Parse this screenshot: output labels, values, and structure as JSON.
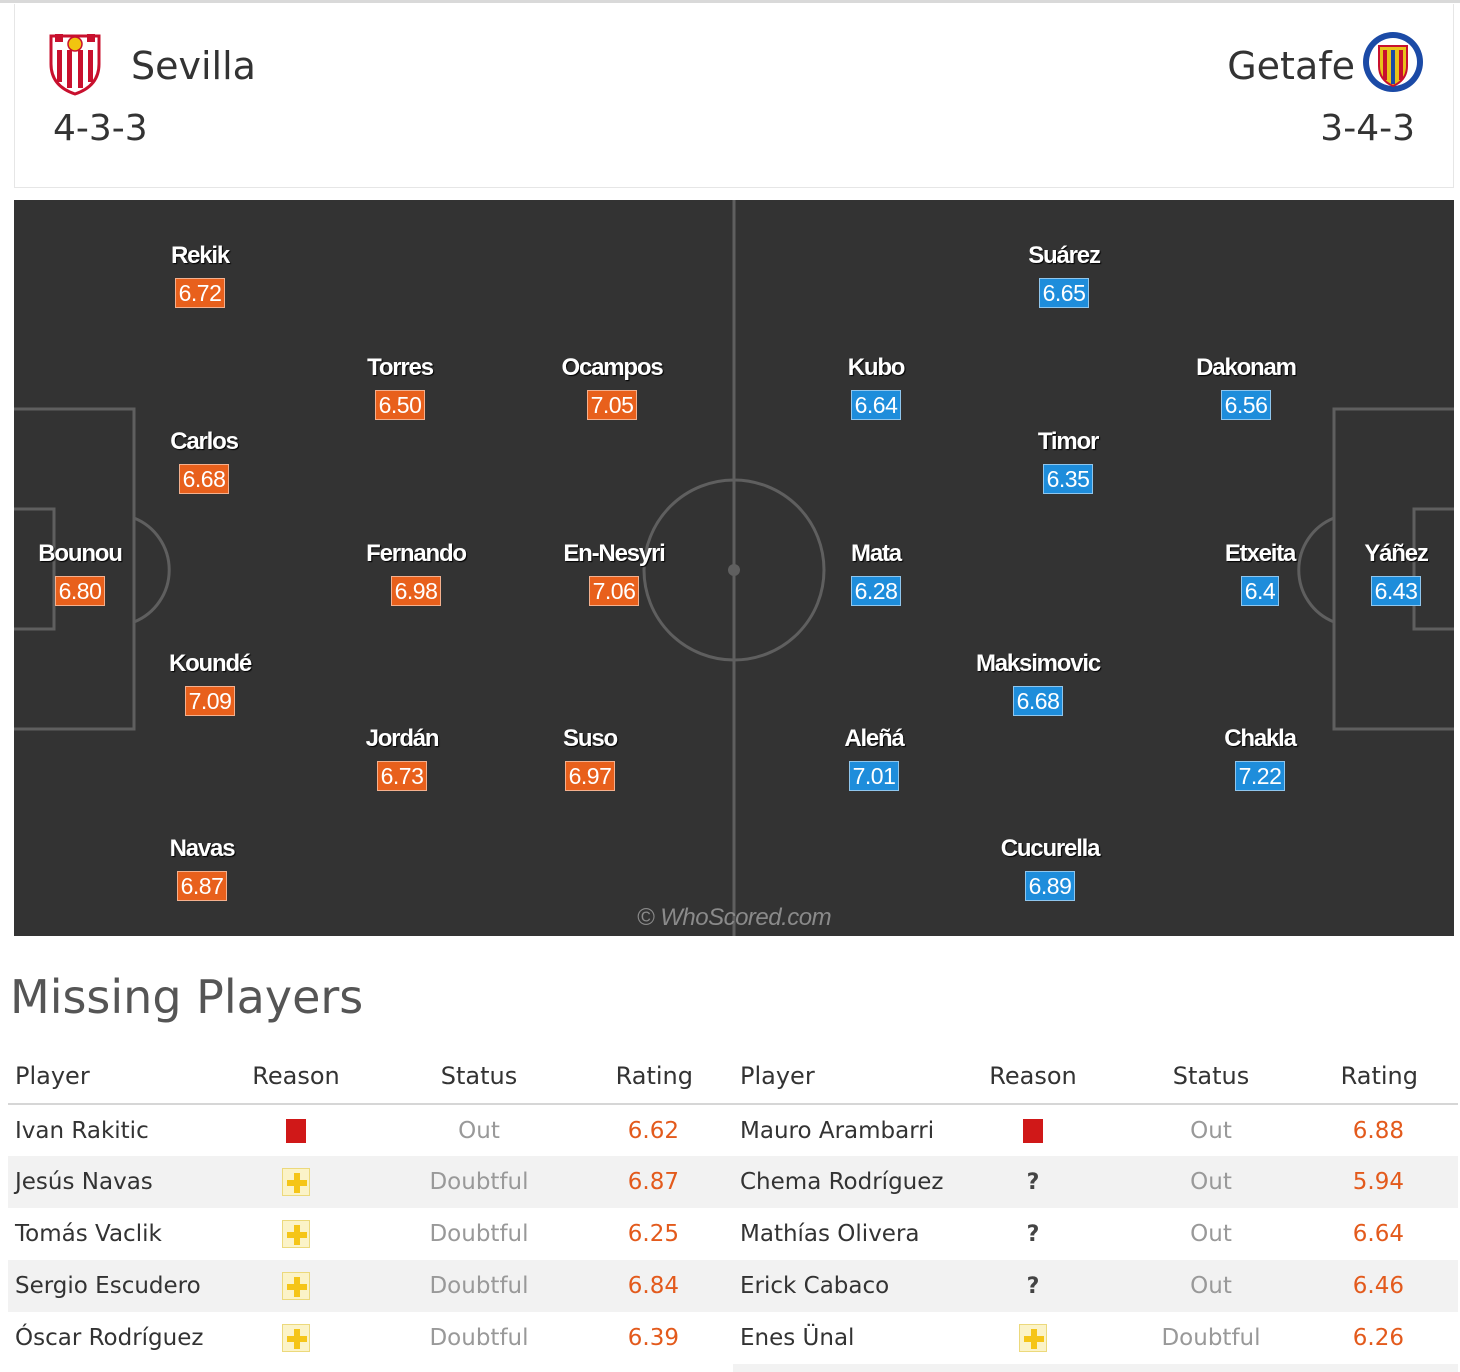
{
  "home": {
    "name": "Sevilla",
    "formation": "4-3-3",
    "crest_icon": "sevilla-crest-icon",
    "rating_color": "#e8601c",
    "players": [
      {
        "name": "Rekik",
        "rating": "6.72"
      },
      {
        "name": "Torres",
        "rating": "6.50"
      },
      {
        "name": "Ocampos",
        "rating": "7.05"
      },
      {
        "name": "Carlos",
        "rating": "6.68"
      },
      {
        "name": "Bounou",
        "rating": "6.80"
      },
      {
        "name": "Fernando",
        "rating": "6.98"
      },
      {
        "name": "En-Nesyri",
        "rating": "7.06"
      },
      {
        "name": "Koundé",
        "rating": "7.09"
      },
      {
        "name": "Jordán",
        "rating": "6.73"
      },
      {
        "name": "Suso",
        "rating": "6.97"
      },
      {
        "name": "Navas",
        "rating": "6.87"
      }
    ]
  },
  "away": {
    "name": "Getafe",
    "formation": "3-4-3",
    "crest_icon": "getafe-crest-icon",
    "rating_color": "#1e8ddb",
    "players": [
      {
        "name": "Suárez",
        "rating": "6.65"
      },
      {
        "name": "Kubo",
        "rating": "6.64"
      },
      {
        "name": "Dakonam",
        "rating": "6.56"
      },
      {
        "name": "Timor",
        "rating": "6.35"
      },
      {
        "name": "Mata",
        "rating": "6.28"
      },
      {
        "name": "Etxeita",
        "rating": "6.4"
      },
      {
        "name": "Yáñez",
        "rating": "6.43"
      },
      {
        "name": "Maksimovic",
        "rating": "6.68"
      },
      {
        "name": "Aleñá",
        "rating": "7.01"
      },
      {
        "name": "Chakla",
        "rating": "7.22"
      },
      {
        "name": "Cucurella",
        "rating": "6.89"
      }
    ]
  },
  "watermark": "© WhoScored.com",
  "missing": {
    "title": "Missing Players",
    "columns": {
      "player": "Player",
      "reason": "Reason",
      "status": "Status",
      "rating": "Rating"
    },
    "home_rows": [
      {
        "player": "Ivan Rakitic",
        "reason": "red-card-icon",
        "status": "Out",
        "rating": "6.62"
      },
      {
        "player": "Jesús Navas",
        "reason": "injury-icon",
        "status": "Doubtful",
        "rating": "6.87"
      },
      {
        "player": "Tomás Vaclik",
        "reason": "injury-icon",
        "status": "Doubtful",
        "rating": "6.25"
      },
      {
        "player": "Sergio Escudero",
        "reason": "injury-icon",
        "status": "Doubtful",
        "rating": "6.84"
      },
      {
        "player": "Óscar Rodríguez",
        "reason": "injury-icon",
        "status": "Doubtful",
        "rating": "6.39"
      }
    ],
    "away_rows": [
      {
        "player": "Mauro Arambarri",
        "reason": "red-card-icon",
        "status": "Out",
        "rating": "6.88"
      },
      {
        "player": "Chema Rodríguez",
        "reason": "unknown-icon",
        "status": "Out",
        "rating": "5.94"
      },
      {
        "player": "Mathías Olivera",
        "reason": "unknown-icon",
        "status": "Out",
        "rating": "6.64"
      },
      {
        "player": "Erick Cabaco",
        "reason": "unknown-icon",
        "status": "Out",
        "rating": "6.46"
      },
      {
        "player": "Enes Ünal",
        "reason": "injury-icon",
        "status": "Doubtful",
        "rating": "6.26"
      }
    ]
  }
}
